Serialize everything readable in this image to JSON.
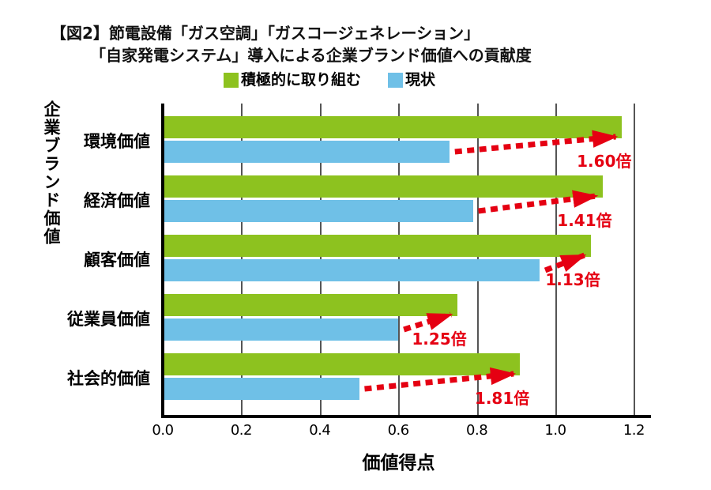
{
  "title": {
    "line1": "【図2】節電設備「ガス空調」「ガスコージェネレーション」",
    "line2": "「自家発電システム」導入による企業ブランド価値への貢献度"
  },
  "legend": {
    "items": [
      {
        "label": "積極的に取り組む",
        "color": "#8dc21f"
      },
      {
        "label": "現状",
        "color": "#6fc0e7"
      }
    ]
  },
  "chart_data": {
    "type": "bar",
    "orientation": "horizontal",
    "title": "【図2】節電設備「ガス空調」「ガスコージェネレーション」「自家発電システム」導入による企業ブランド価値への貢献度",
    "categories": [
      "環境価値",
      "経済価値",
      "顧客価値",
      "従業員価値",
      "社会的価値"
    ],
    "series": [
      {
        "name": "積極的に取り組む",
        "color": "#8dc21f",
        "values": [
          1.17,
          1.12,
          1.09,
          0.75,
          0.91
        ]
      },
      {
        "name": "現状",
        "color": "#6fc0e7",
        "values": [
          0.73,
          0.79,
          0.96,
          0.6,
          0.5
        ]
      }
    ],
    "ratio_labels": [
      "1.60倍",
      "1.41倍",
      "1.13倍",
      "1.25倍",
      "1.81倍"
    ],
    "ratio_color": "#e50012",
    "xlabel": "価値得点",
    "ylabel": "企業ブランド価値",
    "xlim": [
      0.0,
      1.2
    ],
    "xticks": [
      "0.0",
      "0.2",
      "0.4",
      "0.6",
      "0.8",
      "1.0",
      "1.2"
    ],
    "grid": true,
    "legend_position": "top",
    "grid_color": "#555555",
    "axis_color": "#000000"
  }
}
